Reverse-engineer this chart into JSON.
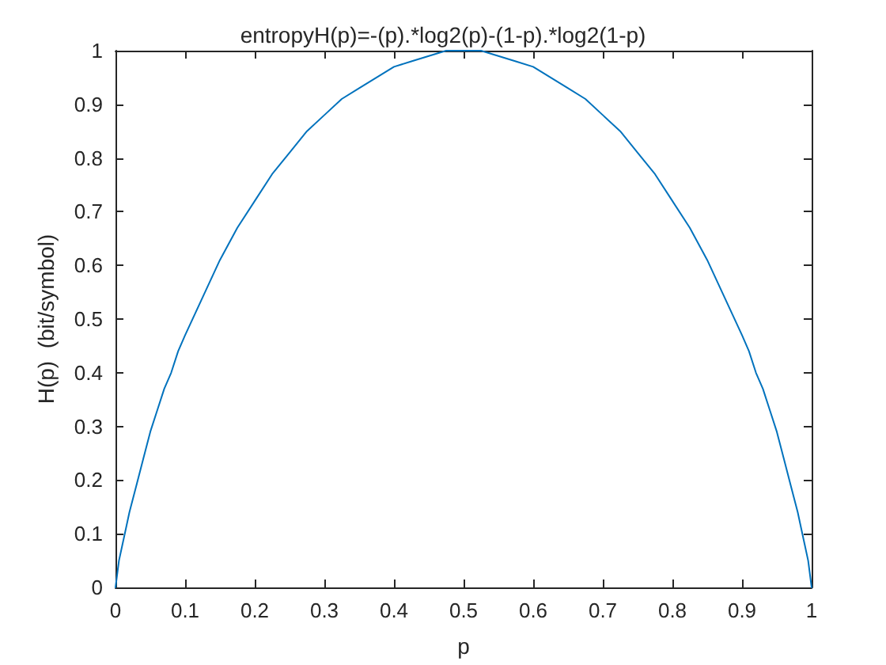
{
  "chart_data": {
    "type": "line",
    "title": "entropyH(p)=-(p).*log2(p)-(1-p).*log2(1-p)",
    "xlabel": "p",
    "ylabel": "H(p)  (bit/symbol)",
    "x": [
      0,
      0.005,
      0.01,
      0.015,
      0.02,
      0.03,
      0.04,
      0.05,
      0.06,
      0.07,
      0.08,
      0.09,
      0.1,
      0.125,
      0.15,
      0.175,
      0.2,
      0.225,
      0.25,
      0.275,
      0.3,
      0.325,
      0.35,
      0.375,
      0.4,
      0.425,
      0.45,
      0.475,
      0.5,
      0.525,
      0.55,
      0.575,
      0.6,
      0.625,
      0.65,
      0.675,
      0.7,
      0.725,
      0.75,
      0.775,
      0.8,
      0.825,
      0.85,
      0.875,
      0.9,
      0.91,
      0.92,
      0.93,
      0.94,
      0.95,
      0.96,
      0.97,
      0.98,
      0.985,
      0.99,
      0.995,
      1
    ],
    "series": [
      {
        "color": "#0072bd",
        "values": [
          0,
          0.05,
          0.08,
          0.11,
          0.14,
          0.19,
          0.24,
          0.29,
          0.33,
          0.37,
          0.4,
          0.44,
          0.47,
          0.54,
          0.61,
          0.67,
          0.72,
          0.77,
          0.81,
          0.85,
          0.88,
          0.91,
          0.93,
          0.95,
          0.97,
          0.98,
          0.99,
          1,
          1,
          1,
          0.99,
          0.98,
          0.97,
          0.95,
          0.93,
          0.91,
          0.88,
          0.85,
          0.81,
          0.77,
          0.72,
          0.67,
          0.61,
          0.54,
          0.47,
          0.44,
          0.4,
          0.37,
          0.33,
          0.29,
          0.24,
          0.19,
          0.14,
          0.11,
          0.08,
          0.05,
          0
        ]
      }
    ],
    "xlim": [
      0,
      1
    ],
    "xticks": [
      0,
      0.1,
      0.2,
      0.3,
      0.4,
      0.5,
      0.6,
      0.7,
      0.8,
      0.9,
      1
    ],
    "ylim": [
      0,
      1
    ],
    "yticks": [
      0,
      0.1,
      0.2,
      0.3,
      0.4,
      0.5,
      0.6,
      0.7,
      0.8,
      0.9,
      1
    ],
    "grid": false,
    "marker": "none",
    "line_style": "solid"
  }
}
